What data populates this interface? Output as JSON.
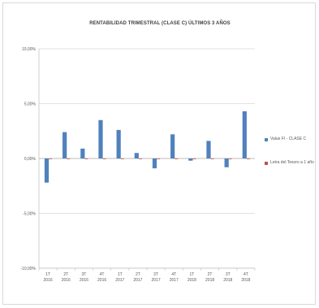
{
  "chart_data": {
    "type": "bar",
    "title": "RENTABILIDAD TRIMESTRAL (CLASE C) ÚLTIMOS 3 AÑOS",
    "categories": [
      [
        "1T",
        "2016"
      ],
      [
        "2T",
        "2016"
      ],
      [
        "3T",
        "2016"
      ],
      [
        "4T",
        "2016"
      ],
      [
        "1T",
        "2017"
      ],
      [
        "2T",
        "2017"
      ],
      [
        "3T",
        "2017"
      ],
      [
        "4T",
        "2017"
      ],
      [
        "1T",
        "2018"
      ],
      [
        "2T",
        "2018"
      ],
      [
        "3T",
        "2018"
      ],
      [
        "4T",
        "2018"
      ]
    ],
    "series": [
      {
        "name": "Value FI - CLASE C",
        "color": "#4f81bd",
        "values": [
          -2.2,
          2.4,
          0.9,
          3.5,
          2.6,
          0.5,
          -0.9,
          2.2,
          -0.2,
          1.6,
          -0.8,
          4.3
        ]
      },
      {
        "name": "Letra del Tesoro a 1 año",
        "color": "#c0504d",
        "values": [
          -0.05,
          -0.05,
          -0.05,
          -0.05,
          -0.05,
          -0.05,
          -0.05,
          -0.05,
          -0.05,
          -0.05,
          -0.05,
          -0.05
        ]
      }
    ],
    "ylim": [
      -10,
      10
    ],
    "yticks": [
      "10,00%",
      "5,00%",
      "0,00%",
      "-5,00%",
      "-10,00%"
    ],
    "ytick_values": [
      10,
      5,
      0,
      -5,
      -10
    ],
    "grid": true,
    "legend": "right"
  }
}
